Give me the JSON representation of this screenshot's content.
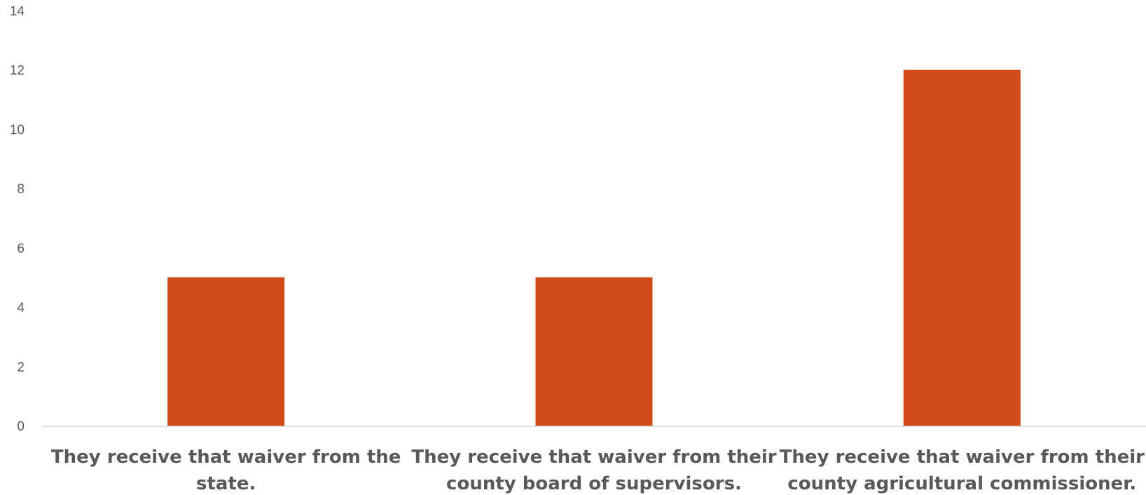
{
  "chart_data": {
    "type": "bar",
    "categories": [
      [
        "They receive that waiver from the",
        "state."
      ],
      [
        "They receive that waiver from their",
        "county board of supervisors."
      ],
      [
        "They receive that waiver from their",
        "county agricultural commissioner."
      ]
    ],
    "values": [
      5,
      5,
      12
    ],
    "yticks": [
      "0",
      "2",
      "4",
      "6",
      "8",
      "10",
      "12",
      "14"
    ],
    "ylim": [
      0,
      14
    ],
    "grid": false,
    "legend": "none",
    "bar_color": "#d24a19",
    "title": "",
    "xlabel": "",
    "ylabel": ""
  }
}
